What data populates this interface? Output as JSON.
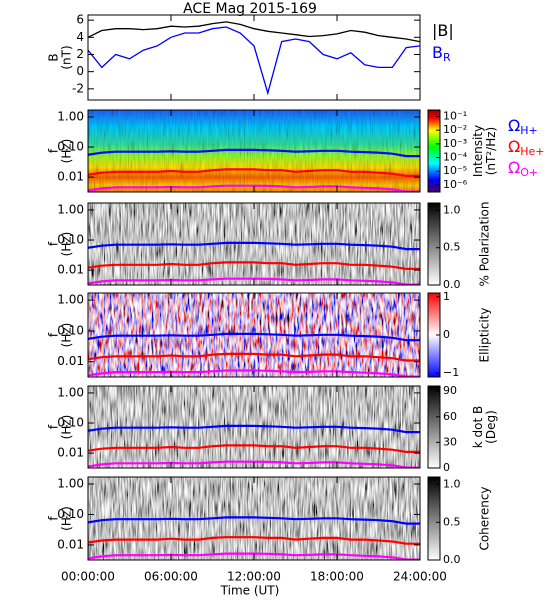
{
  "chart_data": [
    {
      "type": "line",
      "title": "ACE Mag 2015-169",
      "ylabel": [
        "B",
        "(nT)"
      ],
      "xlim": [
        0,
        24
      ],
      "xticks": [
        0,
        6,
        12,
        18,
        24
      ],
      "ylim": [
        -3.3,
        6.6
      ],
      "yticks": [
        -2,
        0,
        2,
        4,
        6
      ],
      "x": [
        0,
        1,
        2,
        3,
        4,
        5,
        6,
        7,
        8,
        9,
        10,
        11,
        12,
        13,
        14,
        15,
        16,
        17,
        18,
        19,
        20,
        21,
        22,
        23,
        24
      ],
      "series": [
        {
          "name": "|B|",
          "color": "#000000",
          "values": [
            4.0,
            4.8,
            5.0,
            5.0,
            4.9,
            5.0,
            5.3,
            5.2,
            5.3,
            5.6,
            5.8,
            5.5,
            5.0,
            4.7,
            4.5,
            4.3,
            4.1,
            4.2,
            4.4,
            4.8,
            4.6,
            4.2,
            4.0,
            3.8,
            3.5
          ]
        },
        {
          "name": "B",
          "name_sub": "R",
          "color": "#0000ff",
          "values": [
            2.5,
            0.5,
            2.0,
            1.5,
            2.5,
            3.0,
            4.0,
            4.5,
            4.5,
            5.0,
            5.2,
            4.5,
            3.0,
            -2.5,
            3.5,
            3.8,
            3.5,
            2.0,
            1.5,
            2.2,
            0.8,
            0.5,
            0.5,
            2.8,
            3.0
          ]
        }
      ]
    },
    {
      "type": "spectrogram",
      "ylabel": [
        "f",
        "(Hz)"
      ],
      "xlim": [
        0,
        24
      ],
      "xticks": [
        0,
        6,
        12,
        18,
        24
      ],
      "ylim": [
        0.0032,
        1.7
      ],
      "log_y": true,
      "yticks": [
        {
          "value": 1,
          "label": "1.00"
        },
        {
          "value": 0.1,
          "label": "0.10"
        },
        {
          "value": 0.01,
          "label": "0.01"
        }
      ],
      "colormap": "jet",
      "colorbar": {
        "label": [
          "Intensity",
          "(nT²/Hz)"
        ],
        "lim": [
          3e-07,
          0.3
        ],
        "log": true,
        "ticks": [
          {
            "value": 0.1,
            "label": "10⁻¹"
          },
          {
            "value": 0.01,
            "label": "10⁻²"
          },
          {
            "value": 0.001,
            "label": "10⁻³"
          },
          {
            "value": 0.0001,
            "label": "10⁻⁴"
          },
          {
            "value": 1e-05,
            "label": "10⁻⁵"
          },
          {
            "value": 1e-06,
            "label": "10⁻⁶"
          }
        ]
      },
      "x": [
        0,
        1,
        2,
        3,
        4,
        5,
        6,
        7,
        8,
        9,
        10,
        11,
        12,
        13,
        14,
        15,
        16,
        17,
        18,
        19,
        20,
        21,
        22,
        23,
        24
      ],
      "series": [
        {
          "name": "Ω",
          "name_sub": "H+",
          "color": "#0000ff",
          "values": [
            0.055,
            0.065,
            0.07,
            0.07,
            0.07,
            0.07,
            0.072,
            0.07,
            0.07,
            0.075,
            0.08,
            0.08,
            0.08,
            0.078,
            0.075,
            0.07,
            0.072,
            0.075,
            0.075,
            0.07,
            0.068,
            0.065,
            0.06,
            0.05,
            0.05
          ]
        },
        {
          "name": "Ω",
          "name_sub": "He+",
          "color": "#ff0000",
          "values": [
            0.012,
            0.014,
            0.015,
            0.015,
            0.015,
            0.015,
            0.016,
            0.015,
            0.015,
            0.017,
            0.018,
            0.018,
            0.018,
            0.017,
            0.017,
            0.015,
            0.016,
            0.017,
            0.017,
            0.015,
            0.015,
            0.014,
            0.013,
            0.011,
            0.011
          ]
        },
        {
          "name": "Ω",
          "name_sub": "O+",
          "color": "#ff00ff",
          "values": [
            0.0036,
            0.0042,
            0.0046,
            0.0046,
            0.0046,
            0.0046,
            0.0047,
            0.0046,
            0.0046,
            0.0049,
            0.0052,
            0.0052,
            0.0052,
            0.0051,
            0.0049,
            0.0046,
            0.0047,
            0.0049,
            0.0049,
            0.0046,
            0.0044,
            0.0042,
            0.0039,
            0.0033,
            0.0033
          ]
        }
      ]
    },
    {
      "type": "spectrogram",
      "ylabel": [
        "f",
        "(Hz)"
      ],
      "xlim": [
        0,
        24
      ],
      "xticks": [
        0,
        6,
        12,
        18,
        24
      ],
      "ylim": [
        0.0032,
        1.7
      ],
      "log_y": true,
      "yticks": [
        {
          "value": 1,
          "label": "1.00"
        },
        {
          "value": 0.1,
          "label": "0.10"
        },
        {
          "value": 0.01,
          "label": "0.01"
        }
      ],
      "colormap": "gray",
      "colorbar": {
        "label": [
          "% Polarization"
        ],
        "lim": [
          0,
          1.1
        ],
        "log": false,
        "ticks": [
          {
            "value": 1,
            "label": "1.0"
          },
          0.5,
          {
            "value": 0,
            "label": "0.0"
          }
        ]
      },
      "x": [
        0,
        1,
        2,
        3,
        4,
        5,
        6,
        7,
        8,
        9,
        10,
        11,
        12,
        13,
        14,
        15,
        16,
        17,
        18,
        19,
        20,
        21,
        22,
        23,
        24
      ],
      "series": [
        {
          "color": "#0000ff",
          "values": [
            0.055,
            0.065,
            0.07,
            0.07,
            0.07,
            0.07,
            0.072,
            0.07,
            0.07,
            0.075,
            0.08,
            0.08,
            0.08,
            0.078,
            0.075,
            0.07,
            0.072,
            0.075,
            0.075,
            0.07,
            0.068,
            0.065,
            0.06,
            0.05,
            0.05
          ]
        },
        {
          "color": "#ff0000",
          "values": [
            0.012,
            0.014,
            0.015,
            0.015,
            0.015,
            0.015,
            0.016,
            0.015,
            0.015,
            0.017,
            0.018,
            0.018,
            0.018,
            0.017,
            0.017,
            0.015,
            0.016,
            0.017,
            0.017,
            0.015,
            0.015,
            0.014,
            0.013,
            0.011,
            0.011
          ]
        },
        {
          "color": "#ff00ff",
          "values": [
            0.0036,
            0.0042,
            0.0046,
            0.0046,
            0.0046,
            0.0046,
            0.0047,
            0.0046,
            0.0046,
            0.0049,
            0.0052,
            0.0052,
            0.0052,
            0.0051,
            0.0049,
            0.0046,
            0.0047,
            0.0049,
            0.0049,
            0.0046,
            0.0044,
            0.0042,
            0.0039,
            0.0033,
            0.0033
          ]
        }
      ]
    },
    {
      "type": "spectrogram",
      "ylabel": [
        "f",
        "(Hz)"
      ],
      "xlim": [
        0,
        24
      ],
      "xticks": [
        0,
        6,
        12,
        18,
        24
      ],
      "ylim": [
        0.0032,
        1.7
      ],
      "log_y": true,
      "yticks": [
        {
          "value": 1,
          "label": "1.00"
        },
        {
          "value": 0.1,
          "label": "0.10"
        },
        {
          "value": 0.01,
          "label": "0.01"
        }
      ],
      "colormap": "rwb",
      "colorbar": {
        "label": [
          "Ellipticity"
        ],
        "lim": [
          -1.1,
          1.1
        ],
        "log": false,
        "ticks": [
          1,
          0,
          {
            "value": -1,
            "label": "−1"
          }
        ]
      },
      "x": [
        0,
        1,
        2,
        3,
        4,
        5,
        6,
        7,
        8,
        9,
        10,
        11,
        12,
        13,
        14,
        15,
        16,
        17,
        18,
        19,
        20,
        21,
        22,
        23,
        24
      ],
      "series": [
        {
          "color": "#0000ff",
          "values": [
            0.055,
            0.065,
            0.07,
            0.07,
            0.07,
            0.07,
            0.072,
            0.07,
            0.07,
            0.075,
            0.08,
            0.08,
            0.08,
            0.078,
            0.075,
            0.07,
            0.072,
            0.075,
            0.075,
            0.07,
            0.068,
            0.065,
            0.06,
            0.05,
            0.05
          ]
        },
        {
          "color": "#ff0000",
          "values": [
            0.012,
            0.014,
            0.015,
            0.015,
            0.015,
            0.015,
            0.016,
            0.015,
            0.015,
            0.017,
            0.018,
            0.018,
            0.018,
            0.017,
            0.017,
            0.015,
            0.016,
            0.017,
            0.017,
            0.015,
            0.015,
            0.014,
            0.013,
            0.011,
            0.011
          ]
        },
        {
          "color": "#ff00ff",
          "values": [
            0.0036,
            0.0042,
            0.0046,
            0.0046,
            0.0046,
            0.0046,
            0.0047,
            0.0046,
            0.0046,
            0.0049,
            0.0052,
            0.0052,
            0.0052,
            0.0051,
            0.0049,
            0.0046,
            0.0047,
            0.0049,
            0.0049,
            0.0046,
            0.0044,
            0.0042,
            0.0039,
            0.0033,
            0.0033
          ]
        }
      ]
    },
    {
      "type": "spectrogram",
      "ylabel": [
        "f",
        "(Hz)"
      ],
      "xlim": [
        0,
        24
      ],
      "xticks": [
        0,
        6,
        12,
        18,
        24
      ],
      "ylim": [
        0.0032,
        1.7
      ],
      "log_y": true,
      "yticks": [
        {
          "value": 1,
          "label": "1.00"
        },
        {
          "value": 0.1,
          "label": "0.10"
        },
        {
          "value": 0.01,
          "label": "0.01"
        }
      ],
      "colormap": "gray",
      "colorbar": {
        "label": [
          "k dot B",
          "(Deg)"
        ],
        "lim": [
          0,
          96
        ],
        "log": false,
        "ticks": [
          90,
          60,
          30,
          0
        ]
      },
      "x": [
        0,
        1,
        2,
        3,
        4,
        5,
        6,
        7,
        8,
        9,
        10,
        11,
        12,
        13,
        14,
        15,
        16,
        17,
        18,
        19,
        20,
        21,
        22,
        23,
        24
      ],
      "series": [
        {
          "color": "#0000ff",
          "values": [
            0.055,
            0.065,
            0.07,
            0.07,
            0.07,
            0.07,
            0.072,
            0.07,
            0.07,
            0.075,
            0.08,
            0.08,
            0.08,
            0.078,
            0.075,
            0.07,
            0.072,
            0.075,
            0.075,
            0.07,
            0.068,
            0.065,
            0.06,
            0.05,
            0.05
          ]
        },
        {
          "color": "#ff0000",
          "values": [
            0.012,
            0.014,
            0.015,
            0.015,
            0.015,
            0.015,
            0.016,
            0.015,
            0.015,
            0.017,
            0.018,
            0.018,
            0.018,
            0.017,
            0.017,
            0.015,
            0.016,
            0.017,
            0.017,
            0.015,
            0.015,
            0.014,
            0.013,
            0.011,
            0.011
          ]
        },
        {
          "color": "#ff00ff",
          "values": [
            0.0036,
            0.0042,
            0.0046,
            0.0046,
            0.0046,
            0.0046,
            0.0047,
            0.0046,
            0.0046,
            0.0049,
            0.0052,
            0.0052,
            0.0052,
            0.0051,
            0.0049,
            0.0046,
            0.0047,
            0.0049,
            0.0049,
            0.0046,
            0.0044,
            0.0042,
            0.0039,
            0.0033,
            0.0033
          ]
        }
      ]
    },
    {
      "type": "spectrogram",
      "ylabel": [
        "f",
        "(Hz)"
      ],
      "xlabel": "Time (UT)",
      "xlim": [
        0,
        24
      ],
      "xticks": [
        {
          "value": 0,
          "label": "00:00:00"
        },
        {
          "value": 6,
          "label": "06:00:00"
        },
        {
          "value": 12,
          "label": "12:00:00"
        },
        {
          "value": 18,
          "label": "18:00:00"
        },
        {
          "value": 24,
          "label": "24:00:00"
        }
      ],
      "ylim": [
        0.0032,
        1.7
      ],
      "log_y": true,
      "yticks": [
        {
          "value": 1,
          "label": "1.00"
        },
        {
          "value": 0.1,
          "label": "0.10"
        },
        {
          "value": 0.01,
          "label": "0.01"
        }
      ],
      "colormap": "gray",
      "colorbar": {
        "label": [
          "Coherency"
        ],
        "lim": [
          0,
          1.1
        ],
        "log": false,
        "ticks": [
          {
            "value": 1,
            "label": "1.0"
          },
          0.5,
          {
            "value": 0,
            "label": "0.0"
          }
        ]
      },
      "x": [
        0,
        1,
        2,
        3,
        4,
        5,
        6,
        7,
        8,
        9,
        10,
        11,
        12,
        13,
        14,
        15,
        16,
        17,
        18,
        19,
        20,
        21,
        22,
        23,
        24
      ],
      "series": [
        {
          "color": "#0000ff",
          "values": [
            0.055,
            0.065,
            0.07,
            0.07,
            0.07,
            0.07,
            0.072,
            0.07,
            0.07,
            0.075,
            0.08,
            0.08,
            0.08,
            0.078,
            0.075,
            0.07,
            0.072,
            0.075,
            0.075,
            0.07,
            0.068,
            0.065,
            0.06,
            0.05,
            0.05
          ]
        },
        {
          "color": "#ff0000",
          "values": [
            0.012,
            0.014,
            0.015,
            0.015,
            0.015,
            0.015,
            0.016,
            0.015,
            0.015,
            0.017,
            0.018,
            0.018,
            0.018,
            0.017,
            0.017,
            0.015,
            0.016,
            0.017,
            0.017,
            0.015,
            0.015,
            0.014,
            0.013,
            0.011,
            0.011
          ]
        },
        {
          "color": "#ff00ff",
          "values": [
            0.0036,
            0.0042,
            0.0046,
            0.0046,
            0.0046,
            0.0046,
            0.0047,
            0.0046,
            0.0046,
            0.0049,
            0.0052,
            0.0052,
            0.0052,
            0.0051,
            0.0049,
            0.0046,
            0.0047,
            0.0049,
            0.0049,
            0.0046,
            0.0044,
            0.0042,
            0.0039,
            0.0033,
            0.0033
          ]
        }
      ]
    }
  ]
}
